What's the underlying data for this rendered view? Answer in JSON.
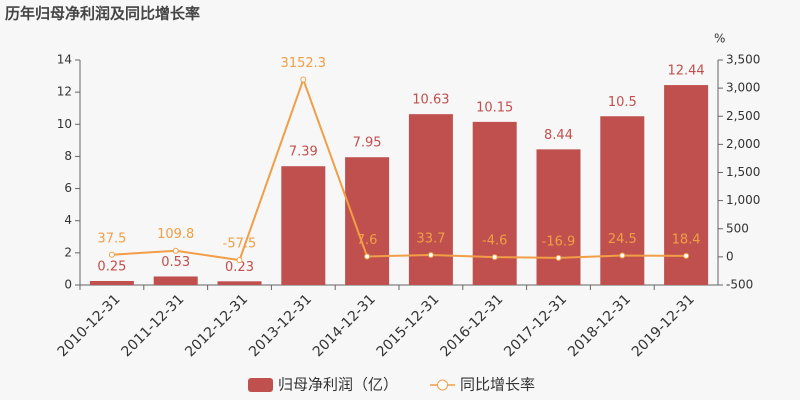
{
  "chart_data": {
    "type": "bar",
    "title": "历年归母净利润及同比增长率",
    "categories": [
      "2010-12-31",
      "2011-12-31",
      "2012-12-31",
      "2013-12-31",
      "2014-12-31",
      "2015-12-31",
      "2016-12-31",
      "2017-12-31",
      "2018-12-31",
      "2019-12-31"
    ],
    "series": [
      {
        "name": "归母净利润（亿）",
        "type": "bar",
        "color": "#c0504d",
        "values": [
          0.25,
          0.53,
          0.23,
          7.39,
          7.95,
          10.63,
          10.15,
          8.44,
          10.5,
          12.44
        ]
      },
      {
        "name": "同比增长率",
        "type": "line",
        "axis": "y2",
        "color": "#f19e46",
        "values": [
          37.5,
          109.8,
          -57.5,
          3152.3,
          7.6,
          33.7,
          -4.6,
          -16.9,
          24.5,
          18.4
        ]
      }
    ],
    "ylim": [
      0,
      14
    ],
    "yticks": [
      0,
      2,
      4,
      6,
      8,
      10,
      12,
      14
    ],
    "y2label": "%",
    "y2lim": [
      -500,
      3500
    ],
    "y2ticks": [
      -500,
      0,
      500,
      {
        "value": 1000,
        "label": "1,000"
      },
      {
        "value": 1500,
        "label": "1,500"
      },
      {
        "value": 2000,
        "label": "2,000"
      },
      {
        "value": 2500,
        "label": "2,500"
      },
      {
        "value": 3000,
        "label": "3,000"
      },
      {
        "value": 3500,
        "label": "3,500"
      }
    ],
    "grid": false
  }
}
